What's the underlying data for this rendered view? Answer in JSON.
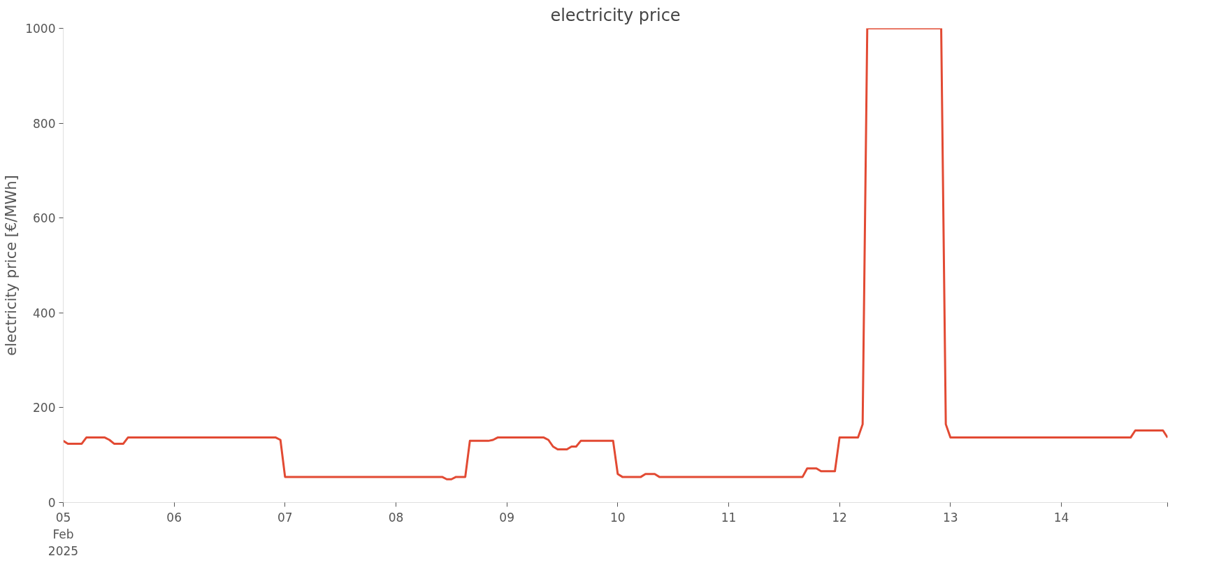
{
  "chart_data": {
    "type": "line",
    "title": "electricity price",
    "ylabel": "electricity price [€/MWh]",
    "x": [
      "2025-02-05T00:00",
      "2025-02-05T01:00",
      "2025-02-05T04:00",
      "2025-02-05T05:00",
      "2025-02-05T09:00",
      "2025-02-05T10:00",
      "2025-02-05T11:00",
      "2025-02-05T13:00",
      "2025-02-05T14:00",
      "2025-02-06T22:00",
      "2025-02-06T23:00",
      "2025-02-07T00:00",
      "2025-02-08T10:00",
      "2025-02-08T11:00",
      "2025-02-08T12:00",
      "2025-02-08T13:00",
      "2025-02-08T15:00",
      "2025-02-08T16:00",
      "2025-02-08T20:00",
      "2025-02-08T21:00",
      "2025-02-08T22:00",
      "2025-02-09T08:00",
      "2025-02-09T09:00",
      "2025-02-09T10:00",
      "2025-02-09T11:00",
      "2025-02-09T13:00",
      "2025-02-09T14:00",
      "2025-02-09T15:00",
      "2025-02-09T16:00",
      "2025-02-09T23:00",
      "2025-02-10T00:00",
      "2025-02-10T01:00",
      "2025-02-10T05:00",
      "2025-02-10T06:00",
      "2025-02-10T08:00",
      "2025-02-10T09:00",
      "2025-02-11T16:00",
      "2025-02-11T17:00",
      "2025-02-11T19:00",
      "2025-02-11T20:00",
      "2025-02-11T23:00",
      "2025-02-12T00:00",
      "2025-02-12T04:00",
      "2025-02-12T05:00",
      "2025-02-12T06:00",
      "2025-02-12T22:00",
      "2025-02-12T23:00",
      "2025-02-13T00:00",
      "2025-02-14T15:00",
      "2025-02-14T16:00",
      "2025-02-14T22:00",
      "2025-02-14T23:00"
    ],
    "series": [
      {
        "color": "#e24a33",
        "values": [
          130,
          124,
          124,
          137,
          137,
          132,
          124,
          124,
          137,
          137,
          132,
          54,
          54,
          49,
          49,
          54,
          54,
          130,
          130,
          132,
          137,
          137,
          132,
          118,
          112,
          112,
          118,
          118,
          130,
          130,
          60,
          54,
          54,
          60,
          60,
          54,
          54,
          72,
          72,
          66,
          66,
          137,
          137,
          165,
          1000,
          1000,
          165,
          137,
          137,
          152,
          152,
          137
        ]
      }
    ],
    "xlim": [
      "2025-02-05T00:00",
      "2025-02-14T23:00"
    ],
    "xticks": [
      {
        "value": "2025-02-05",
        "label": "05\nFeb\n2025"
      },
      {
        "value": "2025-02-06",
        "label": "06"
      },
      {
        "value": "2025-02-07",
        "label": "07"
      },
      {
        "value": "2025-02-08",
        "label": "08"
      },
      {
        "value": "2025-02-09",
        "label": "09"
      },
      {
        "value": "2025-02-10",
        "label": "10"
      },
      {
        "value": "2025-02-11",
        "label": "11"
      },
      {
        "value": "2025-02-12",
        "label": "12"
      },
      {
        "value": "2025-02-13",
        "label": "13"
      },
      {
        "value": "2025-02-14",
        "label": "14"
      },
      {
        "value": "2025-02-14T23:00",
        "label": null
      }
    ],
    "ylim": [
      0,
      1000
    ],
    "yticks": [
      0,
      200,
      400,
      600,
      800,
      1000
    ],
    "grid": false,
    "line_style": "solid",
    "marker": "none"
  }
}
